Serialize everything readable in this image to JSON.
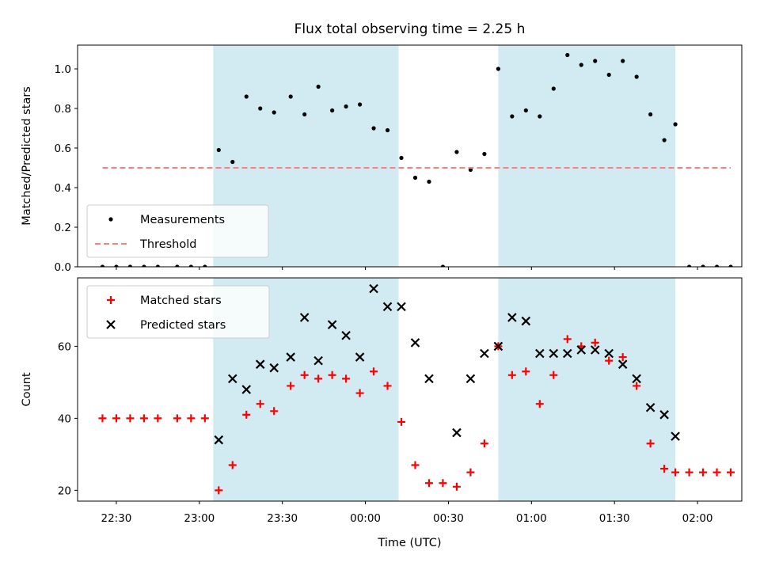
{
  "figure": {
    "title": "Flux total observing time = 2.25 h"
  },
  "colors": {
    "shade": "#add8e6",
    "measurement": "#000000",
    "threshold": "#ff7f7f",
    "matched": "#ff0000",
    "predicted": "#000000"
  },
  "chart_data": [
    {
      "type": "scatter",
      "xlabel": "",
      "ylabel": "Matched/Predicted stars",
      "xlim": [
        "22:16",
        "02:16"
      ],
      "ylim": [
        0,
        1.12
      ],
      "yticks": [
        0.0,
        0.2,
        0.4,
        0.6,
        0.8,
        1.0
      ],
      "ytick_labels": [
        "0.0",
        "0.2",
        "0.4",
        "0.6",
        "0.8",
        "1.0"
      ],
      "shaded_spans": [
        [
          "23:05",
          "00:12"
        ],
        [
          "00:48",
          "01:52"
        ]
      ],
      "legend": {
        "placement": "lower-left",
        "entries": [
          "Measurements",
          "Threshold"
        ]
      },
      "series": [
        {
          "name": "Measurements",
          "marker": "dot",
          "points": [
            [
              "22:25",
              0
            ],
            [
              "22:30",
              0
            ],
            [
              "22:35",
              0
            ],
            [
              "22:40",
              0
            ],
            [
              "22:45",
              0
            ],
            [
              "22:52",
              0
            ],
            [
              "22:57",
              0
            ],
            [
              "23:02",
              0
            ],
            [
              "23:07",
              0.59
            ],
            [
              "23:12",
              0.53
            ],
            [
              "23:17",
              0.86
            ],
            [
              "23:22",
              0.8
            ],
            [
              "23:27",
              0.78
            ],
            [
              "23:33",
              0.86
            ],
            [
              "23:38",
              0.77
            ],
            [
              "23:43",
              0.91
            ],
            [
              "23:48",
              0.79
            ],
            [
              "23:53",
              0.81
            ],
            [
              "23:58",
              0.82
            ],
            [
              "00:03",
              0.7
            ],
            [
              "00:08",
              0.69
            ],
            [
              "00:13",
              0.55
            ],
            [
              "00:18",
              0.45
            ],
            [
              "00:23",
              0.43
            ],
            [
              "00:28",
              0
            ],
            [
              "00:33",
              0.58
            ],
            [
              "00:38",
              0.49
            ],
            [
              "00:43",
              0.57
            ],
            [
              "00:48",
              1.0
            ],
            [
              "00:53",
              0.76
            ],
            [
              "00:58",
              0.79
            ],
            [
              "01:03",
              0.76
            ],
            [
              "01:08",
              0.9
            ],
            [
              "01:13",
              1.07
            ],
            [
              "01:18",
              1.02
            ],
            [
              "01:23",
              1.04
            ],
            [
              "01:28",
              0.97
            ],
            [
              "01:33",
              1.04
            ],
            [
              "01:38",
              0.96
            ],
            [
              "01:43",
              0.77
            ],
            [
              "01:48",
              0.64
            ],
            [
              "01:52",
              0.72
            ],
            [
              "01:57",
              0
            ],
            [
              "02:02",
              0
            ],
            [
              "02:07",
              0
            ],
            [
              "02:12",
              0
            ]
          ]
        },
        {
          "name": "Threshold",
          "style": "dashed",
          "x": [
            "22:25",
            "02:12"
          ],
          "y": [
            0.5,
            0.5
          ]
        }
      ]
    },
    {
      "type": "scatter",
      "xlabel": "Time (UTC)",
      "ylabel": "Count",
      "xlim": [
        "22:16",
        "02:16"
      ],
      "ylim": [
        17,
        79
      ],
      "yticks": [
        20,
        40,
        60
      ],
      "ytick_labels": [
        "20",
        "40",
        "60"
      ],
      "xticks": [
        "22:30",
        "23:00",
        "23:30",
        "00:00",
        "00:30",
        "01:00",
        "01:30",
        "02:00"
      ],
      "shaded_spans": [
        [
          "23:05",
          "00:12"
        ],
        [
          "00:48",
          "01:52"
        ]
      ],
      "legend": {
        "placement": "upper-left",
        "entries": [
          "Matched stars",
          "Predicted stars"
        ]
      },
      "series": [
        {
          "name": "Matched stars",
          "marker": "plus",
          "points": [
            [
              "22:25",
              40
            ],
            [
              "22:30",
              40
            ],
            [
              "22:35",
              40
            ],
            [
              "22:40",
              40
            ],
            [
              "22:45",
              40
            ],
            [
              "22:52",
              40
            ],
            [
              "22:57",
              40
            ],
            [
              "23:02",
              40
            ],
            [
              "23:07",
              20
            ],
            [
              "23:12",
              27
            ],
            [
              "23:17",
              41
            ],
            [
              "23:22",
              44
            ],
            [
              "23:27",
              42
            ],
            [
              "23:33",
              49
            ],
            [
              "23:38",
              52
            ],
            [
              "23:43",
              51
            ],
            [
              "23:48",
              52
            ],
            [
              "23:53",
              51
            ],
            [
              "23:58",
              47
            ],
            [
              "00:03",
              53
            ],
            [
              "00:08",
              49
            ],
            [
              "00:13",
              39
            ],
            [
              "00:18",
              27
            ],
            [
              "00:23",
              22
            ],
            [
              "00:28",
              22
            ],
            [
              "00:33",
              21
            ],
            [
              "00:38",
              25
            ],
            [
              "00:43",
              33
            ],
            [
              "00:48",
              60
            ],
            [
              "00:53",
              52
            ],
            [
              "00:58",
              53
            ],
            [
              "01:03",
              44
            ],
            [
              "01:08",
              52
            ],
            [
              "01:13",
              62
            ],
            [
              "01:18",
              60
            ],
            [
              "01:23",
              61
            ],
            [
              "01:28",
              56
            ],
            [
              "01:33",
              57
            ],
            [
              "01:38",
              49
            ],
            [
              "01:43",
              33
            ],
            [
              "01:48",
              26
            ],
            [
              "01:52",
              25
            ],
            [
              "01:57",
              25
            ],
            [
              "02:02",
              25
            ],
            [
              "02:07",
              25
            ],
            [
              "02:12",
              25
            ]
          ]
        },
        {
          "name": "Predicted stars",
          "marker": "x",
          "points": [
            [
              "23:07",
              34
            ],
            [
              "23:12",
              51
            ],
            [
              "23:17",
              48
            ],
            [
              "23:22",
              55
            ],
            [
              "23:27",
              54
            ],
            [
              "23:33",
              57
            ],
            [
              "23:38",
              68
            ],
            [
              "23:43",
              56
            ],
            [
              "23:48",
              66
            ],
            [
              "23:53",
              63
            ],
            [
              "23:58",
              57
            ],
            [
              "00:03",
              76
            ],
            [
              "00:08",
              71
            ],
            [
              "00:13",
              71
            ],
            [
              "00:18",
              61
            ],
            [
              "00:23",
              51
            ],
            [
              "00:33",
              36
            ],
            [
              "00:38",
              51
            ],
            [
              "00:43",
              58
            ],
            [
              "00:48",
              60
            ],
            [
              "00:53",
              68
            ],
            [
              "00:58",
              67
            ],
            [
              "01:03",
              58
            ],
            [
              "01:08",
              58
            ],
            [
              "01:13",
              58
            ],
            [
              "01:18",
              59
            ],
            [
              "01:23",
              59
            ],
            [
              "01:28",
              58
            ],
            [
              "01:33",
              55
            ],
            [
              "01:38",
              51
            ],
            [
              "01:43",
              43
            ],
            [
              "01:48",
              41
            ],
            [
              "01:52",
              35
            ]
          ]
        }
      ]
    }
  ]
}
